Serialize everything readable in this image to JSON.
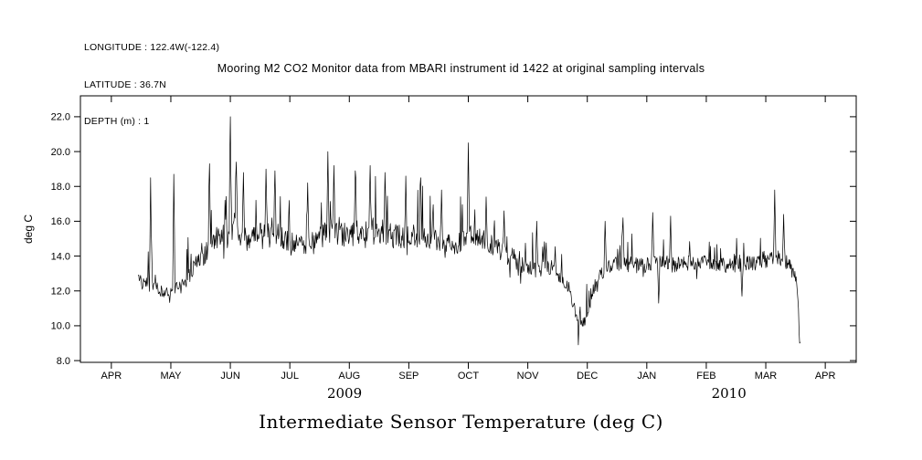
{
  "header": {
    "longitude": "LONGITUDE : 122.4W(-122.4)",
    "latitude": "LATITUDE : 36.7N",
    "depth": "DEPTH (m) : 1"
  },
  "chart_data": {
    "type": "line",
    "title": "Mooring M2 CO2 Monitor data from MBARI instrument id 1422 at original sampling intervals",
    "bottom_title": "Intermediate Sensor Temperature (deg C)",
    "ylabel": "deg C",
    "y_ticks": [
      8,
      10,
      12,
      14,
      16,
      18,
      20,
      22
    ],
    "y_tick_labels": [
      "8.0",
      "10.0",
      "12.0",
      "14.0",
      "16.0",
      "18.0",
      "20.0",
      "22.0"
    ],
    "ylim": [
      7.9,
      23.2
    ],
    "x_tick_labels": [
      "APR",
      "MAY",
      "JUN",
      "JUL",
      "AUG",
      "SEP",
      "OCT",
      "NOV",
      "DEC",
      "JAN",
      "FEB",
      "MAR",
      "APR"
    ],
    "xlim_months": [
      -0.52,
      12.52
    ],
    "x_range_data": [
      0.45,
      11.58
    ],
    "sample_step_months": 0.01,
    "noise_seed": 42,
    "grid": false,
    "legend": "none",
    "line_color": "#000000",
    "years": [
      {
        "label": "2009",
        "x_month": 3.92
      },
      {
        "label": "2010",
        "x_month": 10.38
      }
    ],
    "envelope": [
      [
        0.45,
        12.8,
        0.7
      ],
      [
        0.7,
        12.2,
        0.7
      ],
      [
        0.95,
        11.9,
        0.6
      ],
      [
        1.2,
        12.4,
        0.9
      ],
      [
        1.5,
        13.8,
        1.1
      ],
      [
        1.8,
        15.2,
        1.3
      ],
      [
        2.05,
        15.8,
        1.5
      ],
      [
        2.3,
        14.8,
        1.1
      ],
      [
        2.6,
        15.6,
        1.3
      ],
      [
        2.9,
        15.0,
        1.1
      ],
      [
        3.2,
        14.6,
        1.0
      ],
      [
        3.5,
        15.0,
        1.3
      ],
      [
        3.7,
        15.4,
        1.4
      ],
      [
        4.0,
        15.2,
        1.3
      ],
      [
        4.3,
        15.5,
        1.4
      ],
      [
        4.6,
        15.3,
        1.4
      ],
      [
        4.9,
        15.0,
        1.3
      ],
      [
        5.2,
        15.2,
        1.2
      ],
      [
        5.5,
        14.9,
        1.1
      ],
      [
        5.8,
        14.6,
        1.0
      ],
      [
        6.0,
        15.2,
        1.2
      ],
      [
        6.25,
        15.0,
        1.1
      ],
      [
        6.55,
        14.3,
        1.0
      ],
      [
        6.85,
        13.6,
        0.9
      ],
      [
        7.1,
        13.2,
        0.9
      ],
      [
        7.4,
        13.4,
        0.9
      ],
      [
        7.65,
        12.4,
        0.8
      ],
      [
        7.8,
        10.8,
        0.8
      ],
      [
        7.95,
        10.2,
        0.7
      ],
      [
        8.1,
        12.0,
        0.8
      ],
      [
        8.3,
        13.4,
        0.9
      ],
      [
        8.6,
        13.6,
        0.9
      ],
      [
        8.9,
        13.4,
        0.8
      ],
      [
        9.15,
        13.7,
        0.9
      ],
      [
        9.45,
        13.5,
        0.9
      ],
      [
        9.75,
        13.6,
        0.8
      ],
      [
        10.05,
        13.7,
        0.8
      ],
      [
        10.35,
        13.4,
        0.8
      ],
      [
        10.65,
        13.6,
        0.8
      ],
      [
        10.95,
        13.6,
        0.8
      ],
      [
        11.2,
        13.9,
        0.9
      ],
      [
        11.4,
        13.7,
        0.8
      ],
      [
        11.52,
        12.5,
        0.6
      ],
      [
        11.58,
        9.2,
        0.3
      ]
    ],
    "spikes": [
      [
        0.66,
        18.5
      ],
      [
        1.05,
        18.7
      ],
      [
        1.65,
        19.3
      ],
      [
        2.0,
        22.0
      ],
      [
        2.1,
        19.4
      ],
      [
        2.22,
        18.8
      ],
      [
        2.6,
        19.0
      ],
      [
        2.75,
        18.9
      ],
      [
        3.3,
        18.2
      ],
      [
        3.64,
        20.0
      ],
      [
        3.74,
        19.2
      ],
      [
        4.1,
        18.9
      ],
      [
        4.35,
        19.2
      ],
      [
        4.6,
        18.8
      ],
      [
        4.95,
        18.6
      ],
      [
        5.2,
        18.5
      ],
      [
        5.55,
        17.8
      ],
      [
        6.0,
        20.5
      ],
      [
        6.3,
        17.4
      ],
      [
        6.6,
        16.6
      ],
      [
        7.15,
        16.0
      ],
      [
        7.85,
        8.9
      ],
      [
        8.3,
        16.0
      ],
      [
        8.6,
        16.2
      ],
      [
        9.1,
        16.5
      ],
      [
        9.2,
        11.3
      ],
      [
        9.4,
        16.3
      ],
      [
        10.6,
        11.7
      ],
      [
        11.15,
        17.8
      ],
      [
        11.3,
        16.4
      ],
      [
        11.57,
        9.0
      ]
    ]
  }
}
